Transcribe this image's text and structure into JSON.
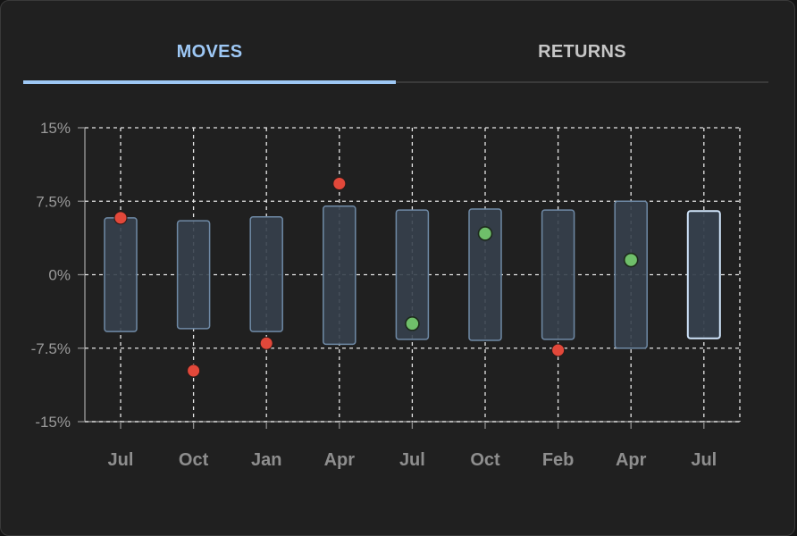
{
  "tabs": [
    {
      "label": "MOVES",
      "active": true
    },
    {
      "label": "RETURNS",
      "active": false
    }
  ],
  "colors": {
    "accent": "#9ec8f5",
    "range_fill": "#36404d",
    "range_stroke": "#6f8aa6",
    "negative_point": "#e2483a",
    "positive_point": "#6fbf6a"
  },
  "chart_data": {
    "type": "range-bar-with-points",
    "ylim": [
      -15,
      15
    ],
    "yticks": [
      {
        "value": 15,
        "label": "15%"
      },
      {
        "value": 7.5,
        "label": "7.5%"
      },
      {
        "value": 0,
        "label": "0%"
      },
      {
        "value": -7.5,
        "label": "-7.5%"
      },
      {
        "value": -15,
        "label": "-15%"
      }
    ],
    "grid": true,
    "categories": [
      "Jul",
      "Oct",
      "Jan",
      "Apr",
      "Jul",
      "Oct",
      "Feb",
      "Apr",
      "Jul"
    ],
    "ranges": [
      {
        "low": -5.8,
        "high": 5.8
      },
      {
        "low": -5.5,
        "high": 5.5
      },
      {
        "low": -5.8,
        "high": 5.9
      },
      {
        "low": -7.1,
        "high": 7.0
      },
      {
        "low": -6.6,
        "high": 6.6
      },
      {
        "low": -6.7,
        "high": 6.7
      },
      {
        "low": -6.6,
        "high": 6.6
      },
      {
        "low": -7.5,
        "high": 7.5
      },
      {
        "low": -6.5,
        "high": 6.5,
        "highlight": true
      }
    ],
    "points": [
      {
        "index": 0,
        "value": 5.8,
        "color": "red"
      },
      {
        "index": 1,
        "value": -9.8,
        "color": "red"
      },
      {
        "index": 2,
        "value": -7.0,
        "color": "red"
      },
      {
        "index": 3,
        "value": 9.3,
        "color": "red"
      },
      {
        "index": 4,
        "value": -5.0,
        "color": "green"
      },
      {
        "index": 5,
        "value": 4.2,
        "color": "green"
      },
      {
        "index": 6,
        "value": -7.7,
        "color": "red"
      },
      {
        "index": 7,
        "value": 1.5,
        "color": "green"
      }
    ]
  }
}
